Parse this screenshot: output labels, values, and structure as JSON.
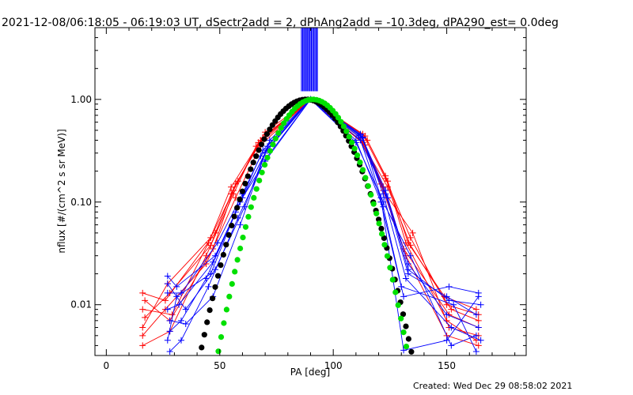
{
  "chart_data": {
    "type": "line",
    "title": "2021-12-08/06:18:05 - 06:19:03 UT, dSectr2add = 2, dPhAng2add = -10.3deg, dPA290_est=  0.0deg",
    "xlabel": "PA [deg]",
    "ylabel": "nflux [#/(cm^2 s sr MeV)]",
    "xlim": [
      -5,
      185
    ],
    "ylim": [
      0.0032,
      5.0
    ],
    "yscale": "log",
    "grid": false,
    "xticks": [
      0,
      50,
      100,
      150
    ],
    "xtick_labels": [
      "0",
      "50",
      "100",
      "150"
    ],
    "yticks": [
      0.01,
      0.1,
      1.0
    ],
    "ytick_labels": [
      "0.01",
      "0.10",
      "1.00"
    ],
    "colors": {
      "red": "#ff0000",
      "blue": "#0000ff",
      "black": "#000000",
      "green": "#00e000"
    },
    "series": [
      {
        "color": "black",
        "style": "dots",
        "function": "gaussian",
        "center": 88,
        "width": 19.5,
        "peak": 1.0,
        "x_range": [
          36,
          141
        ]
      },
      {
        "color": "green",
        "style": "dots",
        "function": "gaussian",
        "center": 91,
        "width": 17.5,
        "peak": 1.0,
        "x_range": [
          35,
          140
        ]
      },
      {
        "color": "blue",
        "style": "vertical_lines",
        "x_range": [
          86,
          93
        ],
        "y_range": [
          1.2,
          5.0
        ]
      }
    ],
    "curves": [
      {
        "color": "red",
        "points": [
          [
            16,
            0.004
          ],
          [
            28,
            0.0055
          ],
          [
            44,
            0.03
          ],
          [
            56,
            0.12
          ],
          [
            66,
            0.35
          ],
          [
            90,
            1.0
          ],
          [
            114,
            0.36
          ],
          [
            122,
            0.14
          ],
          [
            132,
            0.03
          ],
          [
            150,
            0.005
          ],
          [
            164,
            0.004
          ]
        ]
      },
      {
        "color": "red",
        "points": [
          [
            16,
            0.013
          ],
          [
            26,
            0.011
          ],
          [
            48,
            0.05
          ],
          [
            57,
            0.15
          ],
          [
            70,
            0.45
          ],
          [
            90,
            1.0
          ],
          [
            113,
            0.46
          ],
          [
            123,
            0.17
          ],
          [
            134,
            0.045
          ],
          [
            150,
            0.01
          ],
          [
            164,
            0.008
          ]
        ]
      },
      {
        "color": "red",
        "points": [
          [
            16,
            0.009
          ],
          [
            29,
            0.008
          ],
          [
            45,
            0.04
          ],
          [
            55,
            0.14
          ],
          [
            68,
            0.4
          ],
          [
            90,
            1.0
          ],
          [
            112,
            0.42
          ],
          [
            121,
            0.15
          ],
          [
            131,
            0.035
          ],
          [
            151,
            0.008
          ],
          [
            164,
            0.006
          ]
        ]
      },
      {
        "color": "red",
        "points": [
          [
            16,
            0.006
          ],
          [
            27,
            0.016
          ],
          [
            46,
            0.045
          ],
          [
            58,
            0.16
          ],
          [
            69,
            0.42
          ],
          [
            90,
            1.0
          ],
          [
            115,
            0.4
          ],
          [
            124,
            0.16
          ],
          [
            133,
            0.04
          ],
          [
            149,
            0.012
          ],
          [
            163,
            0.009
          ]
        ]
      },
      {
        "color": "red",
        "points": [
          [
            17,
            0.011
          ],
          [
            28,
            0.007
          ],
          [
            47,
            0.035
          ],
          [
            56,
            0.13
          ],
          [
            67,
            0.38
          ],
          [
            90,
            1.0
          ],
          [
            113,
            0.38
          ],
          [
            122,
            0.13
          ],
          [
            135,
            0.05
          ],
          [
            151,
            0.006
          ],
          [
            164,
            0.005
          ]
        ]
      },
      {
        "color": "red",
        "points": [
          [
            16,
            0.005
          ],
          [
            26,
            0.009
          ],
          [
            44,
            0.025
          ],
          [
            57,
            0.11
          ],
          [
            68,
            0.36
          ],
          [
            90,
            1.0
          ],
          [
            114,
            0.44
          ],
          [
            123,
            0.18
          ],
          [
            132,
            0.04
          ],
          [
            150,
            0.007
          ],
          [
            163,
            0.0045
          ]
        ]
      },
      {
        "color": "red",
        "points": [
          [
            17,
            0.0075
          ],
          [
            28,
            0.013
          ],
          [
            46,
            0.038
          ],
          [
            55,
            0.12
          ],
          [
            70,
            0.48
          ],
          [
            90,
            1.0
          ],
          [
            112,
            0.4
          ],
          [
            124,
            0.14
          ],
          [
            134,
            0.038
          ],
          [
            152,
            0.009
          ],
          [
            164,
            0.007
          ]
        ]
      },
      {
        "color": "blue",
        "points": [
          [
            27,
            0.0045
          ],
          [
            31,
            0.012
          ],
          [
            46,
            0.02
          ],
          [
            58,
            0.09
          ],
          [
            70,
            0.3
          ],
          [
            90,
            1.0
          ],
          [
            112,
            0.45
          ],
          [
            123,
            0.12
          ],
          [
            133,
            0.02
          ],
          [
            150,
            0.012
          ],
          [
            163,
            0.008
          ]
        ]
      },
      {
        "color": "blue",
        "points": [
          [
            27,
            0.019
          ],
          [
            31,
            0.015
          ],
          [
            48,
            0.03
          ],
          [
            60,
            0.11
          ],
          [
            70,
            0.25
          ],
          [
            90,
            1.0
          ],
          [
            110,
            0.4
          ],
          [
            121,
            0.1
          ],
          [
            131,
            0.012
          ],
          [
            151,
            0.015
          ],
          [
            164,
            0.013
          ]
        ]
      },
      {
        "color": "blue",
        "points": [
          [
            28,
            0.0055
          ],
          [
            33,
            0.007
          ],
          [
            44,
            0.018
          ],
          [
            57,
            0.08
          ],
          [
            69,
            0.32
          ],
          [
            90,
            1.0
          ],
          [
            113,
            0.42
          ],
          [
            122,
            0.12
          ],
          [
            132,
            0.018
          ],
          [
            152,
            0.006
          ],
          [
            165,
            0.0045
          ]
        ]
      },
      {
        "color": "blue",
        "points": [
          [
            27,
            0.009
          ],
          [
            32,
            0.01
          ],
          [
            47,
            0.026
          ],
          [
            59,
            0.1
          ],
          [
            71,
            0.33
          ],
          [
            90,
            1.0
          ],
          [
            111,
            0.44
          ],
          [
            124,
            0.11
          ],
          [
            133,
            0.025
          ],
          [
            150,
            0.008
          ],
          [
            164,
            0.006
          ]
        ]
      },
      {
        "color": "blue",
        "points": [
          [
            27,
            0.013
          ],
          [
            33,
            0.013
          ],
          [
            49,
            0.04
          ],
          [
            60,
            0.12
          ],
          [
            68,
            0.28
          ],
          [
            90,
            1.0
          ],
          [
            112,
            0.4
          ],
          [
            122,
            0.09
          ],
          [
            130,
            0.015
          ],
          [
            153,
            0.01
          ],
          [
            163,
            0.0035
          ]
        ]
      },
      {
        "color": "blue",
        "points": [
          [
            28,
            0.0035
          ],
          [
            33,
            0.0045
          ],
          [
            45,
            0.015
          ],
          [
            58,
            0.07
          ],
          [
            70,
            0.26
          ],
          [
            90,
            1.0
          ],
          [
            112,
            0.46
          ],
          [
            123,
            0.13
          ],
          [
            133,
            0.022
          ],
          [
            151,
            0.011
          ],
          [
            165,
            0.01
          ]
        ]
      },
      {
        "color": "blue",
        "points": [
          [
            27,
            0.016
          ],
          [
            35,
            0.009
          ],
          [
            48,
            0.022
          ],
          [
            61,
            0.09
          ],
          [
            71,
            0.35
          ],
          [
            90,
            1.0
          ],
          [
            113,
            0.43
          ],
          [
            121,
            0.11
          ],
          [
            131,
            0.0036
          ],
          [
            150,
            0.0045
          ],
          [
            164,
            0.012
          ]
        ]
      },
      {
        "color": "blue",
        "points": [
          [
            28,
            0.007
          ],
          [
            35,
            0.0065
          ],
          [
            47,
            0.012
          ],
          [
            59,
            0.06
          ],
          [
            72,
            0.4
          ],
          [
            90,
            1.0
          ],
          [
            110,
            0.38
          ],
          [
            122,
            0.1
          ],
          [
            134,
            0.03
          ],
          [
            152,
            0.004
          ],
          [
            163,
            0.005
          ]
        ]
      }
    ],
    "footer": "Created: Wed Dec 29 08:58:02 2021"
  }
}
